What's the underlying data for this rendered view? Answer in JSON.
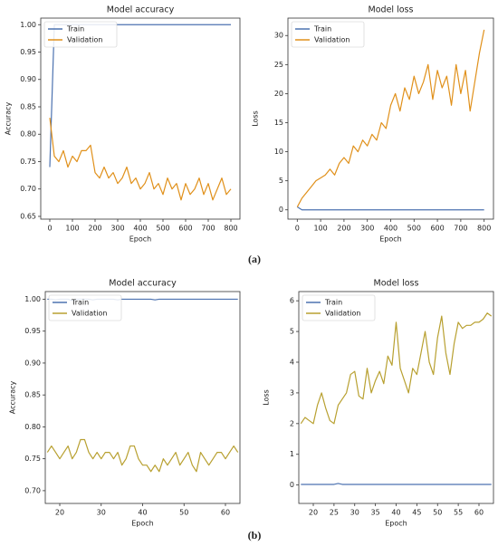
{
  "chart_data": [
    {
      "type": "line",
      "title": "Model accuracy",
      "xlabel": "Epoch",
      "ylabel": "Accuracy",
      "x": [
        0,
        20,
        40,
        60,
        80,
        100,
        120,
        140,
        160,
        180,
        200,
        220,
        240,
        260,
        280,
        300,
        320,
        340,
        360,
        380,
        400,
        420,
        440,
        460,
        480,
        500,
        520,
        540,
        560,
        580,
        600,
        620,
        640,
        660,
        680,
        700,
        720,
        740,
        760,
        780,
        800
      ],
      "series": [
        {
          "name": "Train",
          "color": "#4c72b0",
          "values": [
            0.74,
            1.0,
            1.0,
            1.0,
            1.0,
            1.0,
            1.0,
            1.0,
            1.0,
            1.0,
            1.0,
            1.0,
            1.0,
            1.0,
            1.0,
            1.0,
            1.0,
            1.0,
            1.0,
            1.0,
            1.0,
            1.0,
            1.0,
            1.0,
            1.0,
            1.0,
            1.0,
            1.0,
            1.0,
            1.0,
            1.0,
            1.0,
            1.0,
            1.0,
            1.0,
            1.0,
            1.0,
            1.0,
            1.0,
            1.0,
            1.0
          ]
        },
        {
          "name": "Validation",
          "color": "#e0901a",
          "values": [
            0.83,
            0.76,
            0.75,
            0.77,
            0.74,
            0.76,
            0.75,
            0.77,
            0.77,
            0.78,
            0.73,
            0.72,
            0.74,
            0.72,
            0.73,
            0.71,
            0.72,
            0.74,
            0.71,
            0.72,
            0.7,
            0.71,
            0.73,
            0.7,
            0.71,
            0.69,
            0.72,
            0.7,
            0.71,
            0.68,
            0.71,
            0.69,
            0.7,
            0.72,
            0.69,
            0.71,
            0.68,
            0.7,
            0.72,
            0.69,
            0.7
          ]
        }
      ],
      "xlim": [
        -40,
        840
      ],
      "xticks": [
        0,
        100,
        200,
        300,
        400,
        500,
        600,
        700,
        800
      ],
      "ylim": [
        0.645,
        1.012
      ],
      "yticks": [
        0.65,
        {
          "value": 0.7,
          "label": "0.70"
        },
        0.75,
        {
          "value": 0.8,
          "label": "0.80"
        },
        0.85,
        {
          "value": 0.9,
          "label": "0.90"
        },
        0.95,
        {
          "value": 1.0,
          "label": "1.00"
        }
      ],
      "legend": "upper left"
    },
    {
      "type": "line",
      "title": "Model loss",
      "xlabel": "Epoch",
      "ylabel": "Loss",
      "x": [
        0,
        20,
        40,
        60,
        80,
        100,
        120,
        140,
        160,
        180,
        200,
        220,
        240,
        260,
        280,
        300,
        320,
        340,
        360,
        380,
        400,
        420,
        440,
        460,
        480,
        500,
        520,
        540,
        560,
        580,
        600,
        620,
        640,
        660,
        680,
        700,
        720,
        740,
        760,
        780,
        800
      ],
      "series": [
        {
          "name": "Train",
          "color": "#4c72b0",
          "values": [
            0.5,
            0,
            0,
            0,
            0,
            0,
            0,
            0,
            0,
            0,
            0,
            0,
            0,
            0,
            0,
            0,
            0,
            0,
            0,
            0,
            0,
            0,
            0,
            0,
            0,
            0,
            0,
            0,
            0,
            0,
            0,
            0,
            0,
            0,
            0,
            0,
            0,
            0,
            0,
            0,
            0
          ]
        },
        {
          "name": "Validation",
          "color": "#e0901a",
          "values": [
            0.5,
            2,
            3,
            4,
            5,
            5.5,
            6,
            7,
            6,
            8,
            9,
            8,
            11,
            10,
            12,
            11,
            13,
            12,
            15,
            14,
            18,
            20,
            17,
            21,
            19,
            23,
            20,
            22,
            25,
            19,
            24,
            21,
            23,
            18,
            25,
            20,
            24,
            17,
            22,
            27,
            31
          ]
        }
      ],
      "xlim": [
        -40,
        840
      ],
      "xticks": [
        0,
        100,
        200,
        300,
        400,
        500,
        600,
        700,
        800
      ],
      "ylim": [
        -1.6,
        33
      ],
      "yticks": [
        0,
        5,
        10,
        15,
        20,
        25,
        30
      ],
      "legend": "upper left"
    },
    {
      "type": "line",
      "title": "Model accuracy",
      "xlabel": "Epoch",
      "ylabel": "Accuracy",
      "x": [
        17,
        18,
        19,
        20,
        21,
        22,
        23,
        24,
        25,
        26,
        27,
        28,
        29,
        30,
        31,
        32,
        33,
        34,
        35,
        36,
        37,
        38,
        39,
        40,
        41,
        42,
        43,
        44,
        45,
        46,
        47,
        48,
        49,
        50,
        51,
        52,
        53,
        54,
        55,
        56,
        57,
        58,
        59,
        60,
        61,
        62,
        63
      ],
      "series": [
        {
          "name": "Train",
          "color": "#4c72b0",
          "values": [
            1.0,
            1.0,
            0.999,
            1.0,
            1.0,
            1.0,
            0.998,
            1.0,
            1.0,
            1.0,
            1.0,
            0.999,
            1.0,
            1.0,
            1.0,
            1.0,
            1.0,
            0.999,
            1.0,
            1.0,
            1.0,
            1.0,
            1.0,
            1.0,
            1.0,
            1.0,
            0.999,
            1.0,
            1.0,
            1.0,
            1.0,
            1.0,
            1.0,
            1.0,
            1.0,
            1.0,
            1.0,
            1.0,
            1.0,
            1.0,
            1.0,
            1.0,
            1.0,
            1.0,
            1.0,
            1.0,
            1.0
          ]
        },
        {
          "name": "Validation",
          "color": "#b8a030",
          "values": [
            0.76,
            0.77,
            0.76,
            0.75,
            0.76,
            0.77,
            0.75,
            0.76,
            0.78,
            0.78,
            0.76,
            0.75,
            0.76,
            0.75,
            0.76,
            0.76,
            0.75,
            0.76,
            0.74,
            0.75,
            0.77,
            0.77,
            0.75,
            0.74,
            0.74,
            0.73,
            0.74,
            0.73,
            0.75,
            0.74,
            0.75,
            0.76,
            0.74,
            0.75,
            0.76,
            0.74,
            0.73,
            0.76,
            0.75,
            0.74,
            0.75,
            0.76,
            0.76,
            0.75,
            0.76,
            0.77,
            0.76
          ]
        }
      ],
      "xlim": [
        16.5,
        63.5
      ],
      "xticks": [
        20,
        30,
        40,
        50,
        60
      ],
      "ylim": [
        0.68,
        1.012
      ],
      "yticks": [
        {
          "value": 0.7,
          "label": "0.70"
        },
        0.75,
        {
          "value": 0.8,
          "label": "0.80"
        },
        0.85,
        {
          "value": 0.9,
          "label": "0.90"
        },
        0.95,
        {
          "value": 1.0,
          "label": "1.00"
        }
      ],
      "legend": "upper left"
    },
    {
      "type": "line",
      "title": "Model loss",
      "xlabel": "Epoch",
      "ylabel": "Loss",
      "x": [
        17,
        18,
        19,
        20,
        21,
        22,
        23,
        24,
        25,
        26,
        27,
        28,
        29,
        30,
        31,
        32,
        33,
        34,
        35,
        36,
        37,
        38,
        39,
        40,
        41,
        42,
        43,
        44,
        45,
        46,
        47,
        48,
        49,
        50,
        51,
        52,
        53,
        54,
        55,
        56,
        57,
        58,
        59,
        60,
        61,
        62,
        63
      ],
      "series": [
        {
          "name": "Train",
          "color": "#4c72b0",
          "values": [
            0.02,
            0.02,
            0.02,
            0.02,
            0.02,
            0.02,
            0.02,
            0.02,
            0.02,
            0.05,
            0.02,
            0.02,
            0.02,
            0.02,
            0.02,
            0.02,
            0.02,
            0.02,
            0.02,
            0.02,
            0.02,
            0.02,
            0.02,
            0.02,
            0.02,
            0.02,
            0.02,
            0.02,
            0.02,
            0.02,
            0.02,
            0.02,
            0.02,
            0.02,
            0.02,
            0.02,
            0.02,
            0.02,
            0.02,
            0.02,
            0.02,
            0.02,
            0.02,
            0.02,
            0.02,
            0.02,
            0.02
          ]
        },
        {
          "name": "Validation",
          "color": "#b8a030",
          "values": [
            2.0,
            2.2,
            2.1,
            2.0,
            2.6,
            3.0,
            2.5,
            2.1,
            2.0,
            2.6,
            2.8,
            3.0,
            3.6,
            3.7,
            2.9,
            2.8,
            3.8,
            3.0,
            3.4,
            3.7,
            3.3,
            4.2,
            3.9,
            5.3,
            3.8,
            3.4,
            3.0,
            3.8,
            3.6,
            4.3,
            5.0,
            4.0,
            3.6,
            4.8,
            5.5,
            4.3,
            3.6,
            4.6,
            5.3,
            5.1,
            5.2,
            5.2,
            5.3,
            5.3,
            5.4,
            5.6,
            5.5
          ]
        }
      ],
      "xlim": [
        16.5,
        63.5
      ],
      "xticks": [
        20,
        25,
        30,
        35,
        40,
        45,
        50,
        55,
        60
      ],
      "ylim": [
        -0.6,
        6.3
      ],
      "yticks": [
        0,
        1,
        2,
        3,
        4,
        5,
        6
      ],
      "legend": "upper left"
    }
  ],
  "panel_labels": [
    "(a)",
    "(b)"
  ]
}
